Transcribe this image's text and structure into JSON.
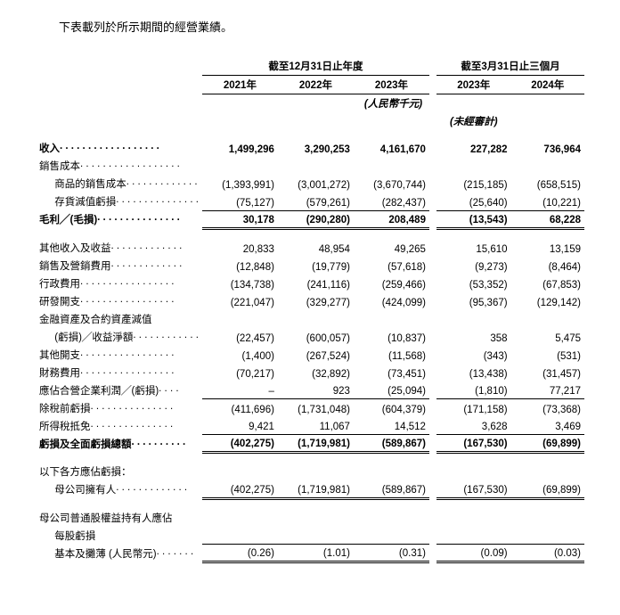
{
  "intro": "下表載列於所示期間的經營業績。",
  "hdr_annual": "截至12月31日止年度",
  "hdr_quarter": "截至3月31日止三個月",
  "yr_2021": "2021年",
  "yr_2022": "2022年",
  "yr_2023": "2023年",
  "q_2023": "2023年",
  "q_2024": "2024年",
  "unit": "(人民幣千元)",
  "unaudited": "(未經審計)",
  "row_revenue": "收入",
  "rev_1": "1,499,296",
  "rev_2": "3,290,253",
  "rev_3": "4,161,670",
  "rev_4": "227,282",
  "rev_5": "736,964",
  "row_cos": "銷售成本",
  "row_cos_goods": "商品的銷售成本",
  "cg_1": "(1,393,991)",
  "cg_2": "(3,001,272)",
  "cg_3": "(3,670,744)",
  "cg_4": "(215,185)",
  "cg_5": "(658,515)",
  "row_inv_loss": "存貨減值虧損",
  "il_1": "(75,127)",
  "il_2": "(579,261)",
  "il_3": "(282,437)",
  "il_4": "(25,640)",
  "il_5": "(10,221)",
  "row_gross": "毛利╱(毛損)",
  "gp_1": "30,178",
  "gp_2": "(290,280)",
  "gp_3": "208,489",
  "gp_4": "(13,543)",
  "gp_5": "68,228",
  "row_other_inc": "其他收入及收益",
  "oi_1": "20,833",
  "oi_2": "48,954",
  "oi_3": "49,265",
  "oi_4": "15,610",
  "oi_5": "13,159",
  "row_sell_exp": "銷售及營銷費用",
  "se_1": "(12,848)",
  "se_2": "(19,779)",
  "se_3": "(57,618)",
  "se_4": "(9,273)",
  "se_5": "(8,464)",
  "row_admin": "行政費用",
  "ad_1": "(134,738)",
  "ad_2": "(241,116)",
  "ad_3": "(259,466)",
  "ad_4": "(53,352)",
  "ad_5": "(67,853)",
  "row_rd": "研發開支",
  "rd_1": "(221,047)",
  "rd_2": "(329,277)",
  "rd_3": "(424,099)",
  "rd_4": "(95,367)",
  "rd_5": "(129,142)",
  "row_fin_impair1": "金融資產及合約資產減值",
  "row_fin_impair2": "(虧損)╱收益淨額",
  "fi_1": "(22,457)",
  "fi_2": "(600,057)",
  "fi_3": "(10,837)",
  "fi_4": "358",
  "fi_5": "5,475",
  "row_other_exp": "其他開支",
  "oe_1": "(1,400)",
  "oe_2": "(267,524)",
  "oe_3": "(11,568)",
  "oe_4": "(343)",
  "oe_5": "(531)",
  "row_fin_cost": "財務費用",
  "fc_1": "(70,217)",
  "fc_2": "(32,892)",
  "fc_3": "(73,451)",
  "fc_4": "(13,438)",
  "fc_5": "(31,457)",
  "row_jv": "應佔合營企業利潤╱(虧損)",
  "jv_1": "–",
  "jv_2": "923",
  "jv_3": "(25,094)",
  "jv_4": "(1,810)",
  "jv_5": "77,217",
  "row_pretax": "除稅前虧損",
  "pt_1": "(411,696)",
  "pt_2": "(1,731,048)",
  "pt_3": "(604,379)",
  "pt_4": "(171,158)",
  "pt_5": "(73,368)",
  "row_tax": "所得稅抵免",
  "tx_1": "9,421",
  "tx_2": "11,067",
  "tx_3": "14,512",
  "tx_4": "3,628",
  "tx_5": "3,469",
  "row_total_loss": "虧損及全面虧損總額",
  "tl_1": "(402,275)",
  "tl_2": "(1,719,981)",
  "tl_3": "(589,867)",
  "tl_4": "(167,530)",
  "tl_5": "(69,899)",
  "row_attrib": "以下各方應佔虧損：",
  "row_parent": "母公司擁有人",
  "pa_1": "(402,275)",
  "pa_2": "(1,719,981)",
  "pa_3": "(589,867)",
  "pa_4": "(167,530)",
  "pa_5": "(69,899)",
  "row_eps1": "母公司普通股權益持有人應佔",
  "row_eps2": "每股虧損",
  "row_basic": "基本及攤薄 (人民幣元)",
  "bd_1": "(0.26)",
  "bd_2": "(1.01)",
  "bd_3": "(0.31)",
  "bd_4": "(0.09)",
  "bd_5": "(0.03)"
}
